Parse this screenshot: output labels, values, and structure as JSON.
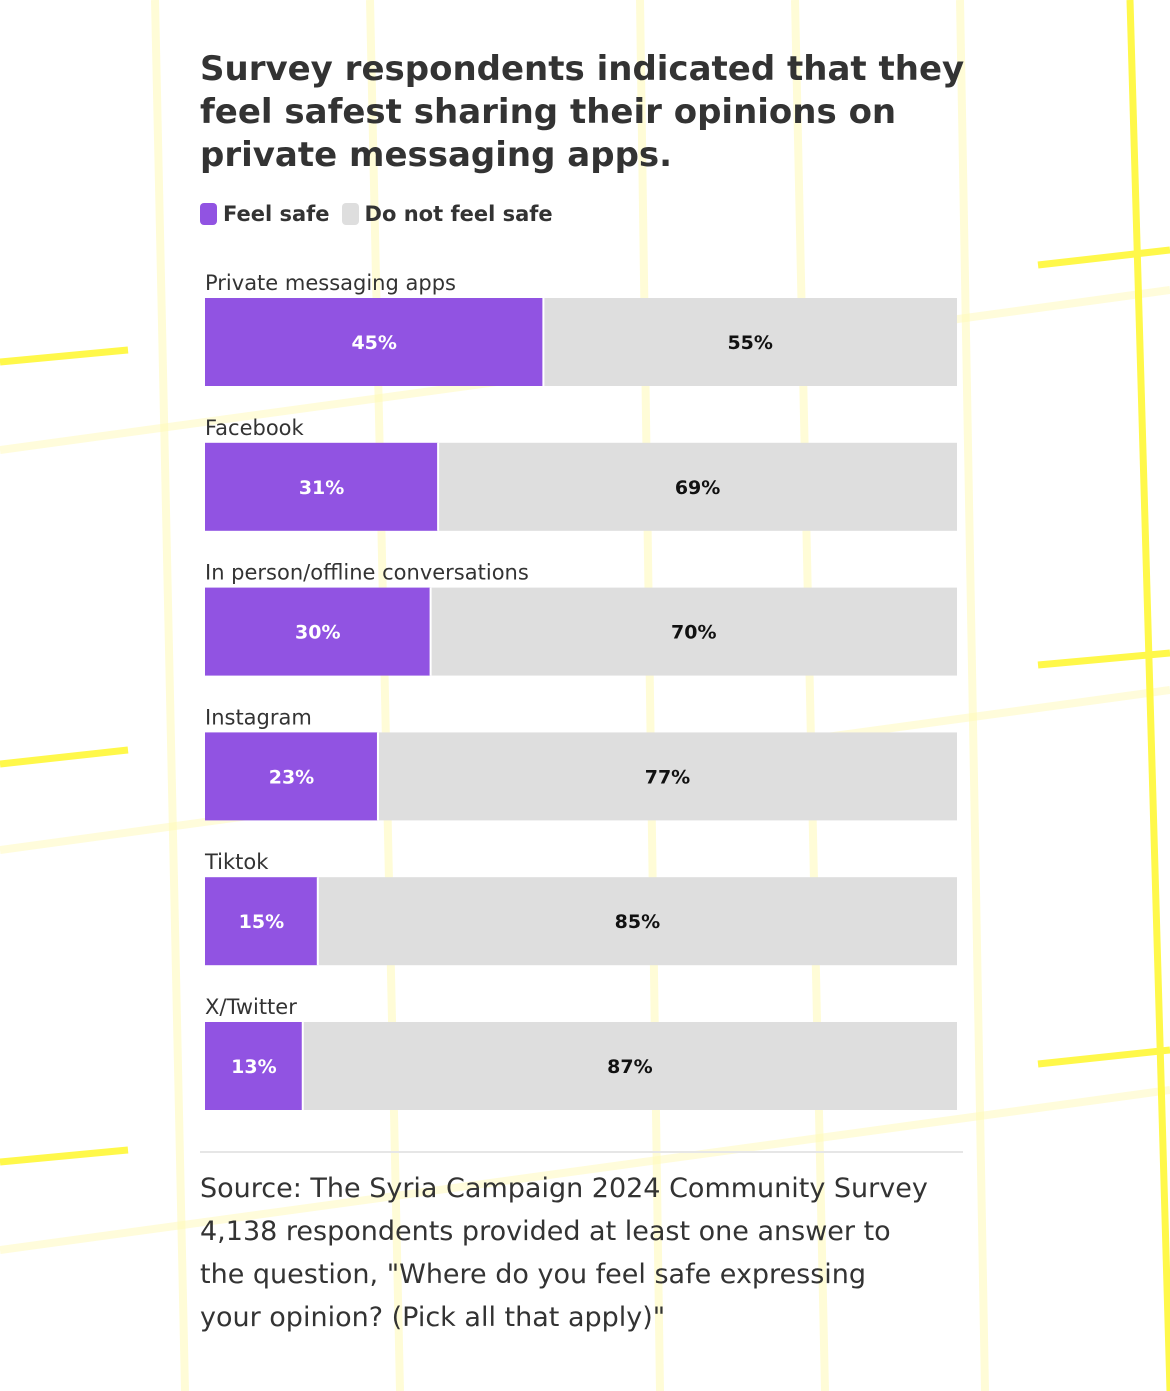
{
  "chart_data": {
    "type": "bar",
    "stacked": true,
    "orientation": "horizontal",
    "title": "Survey respondents indicated that they feel safest sharing their opinions on private messaging apps.",
    "categories": [
      "Private messaging apps",
      "Facebook",
      "In person/offline conversations",
      "Instagram",
      "Tiktok",
      "X/Twitter"
    ],
    "series": [
      {
        "name": "Feel safe",
        "values": [
          45,
          31,
          30,
          23,
          15,
          13
        ],
        "labels": [
          "45%",
          "31%",
          "30%",
          "23%",
          "15%",
          "13%"
        ],
        "color": "#9153e2",
        "label_color": "#ffffff"
      },
      {
        "name": "Do not feel safe",
        "values": [
          55,
          69,
          70,
          77,
          85,
          87
        ],
        "labels": [
          "55%",
          "69%",
          "70%",
          "77%",
          "85%",
          "87%"
        ],
        "color": "#dedede",
        "label_color": "#111111"
      }
    ],
    "xlim": [
      0,
      100
    ],
    "grid": false,
    "legend_position": "top-left"
  },
  "source": {
    "lines": [
      "Source: The Syria Campaign 2024 Community Survey",
      "4,138 respondents provided at least one answer to",
      "the question, \"Where do you feel safe expressing",
      "your opinion? (Pick all that apply)\""
    ]
  },
  "colors": {
    "background_grid": "#fff84a",
    "text": "#333333"
  }
}
